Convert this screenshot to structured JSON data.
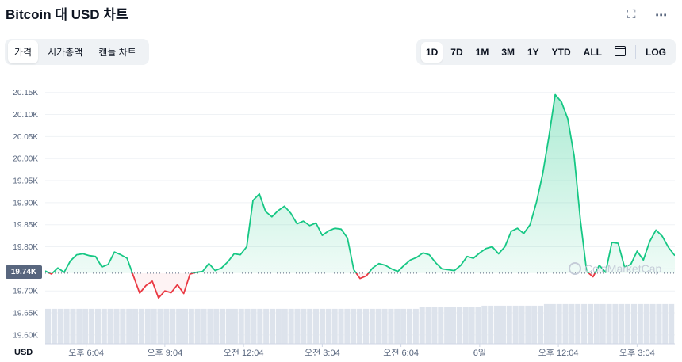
{
  "header": {
    "title": "Bitcoin 대 USD 차트",
    "fullscreen_icon": "expand-icon",
    "more_icon": "more-icon"
  },
  "tabs": [
    {
      "label": "가격",
      "active": true
    },
    {
      "label": "시가총액",
      "active": false
    },
    {
      "label": "캔들 차트",
      "active": false
    }
  ],
  "ranges": {
    "items": [
      "1D",
      "7D",
      "1M",
      "3M",
      "1Y",
      "YTD",
      "ALL"
    ],
    "active": "1D",
    "calendar_icon": "calendar-icon",
    "log_label": "LOG"
  },
  "current_price_label": "19.74K",
  "watermark": "CoinMarketCap",
  "colors": {
    "up": "#16c784",
    "down": "#ea3943",
    "volume": "#dde3ec",
    "grid": "#eff2f5",
    "ref_line": "#58667e"
  },
  "chart_data": {
    "type": "line",
    "unit_label": "USD",
    "reference_value": 19740,
    "ylim": [
      19580,
      20180
    ],
    "y_ticks": [
      19600,
      19650,
      19700,
      19750,
      19800,
      19850,
      19900,
      19950,
      20000,
      20050,
      20100,
      20150
    ],
    "y_tick_labels": [
      "19.60K",
      "19.65K",
      "19.70K",
      "19.75K",
      "19.80K",
      "19.85K",
      "19.90K",
      "19.95K",
      "20.00K",
      "20.05K",
      "20.10K",
      "20.15K"
    ],
    "x_ticks": [
      {
        "label": "오후 6:04",
        "x": 0.065
      },
      {
        "label": "오후 9:04",
        "x": 0.19
      },
      {
        "label": "오전 12:04",
        "x": 0.315
      },
      {
        "label": "오전 3:04",
        "x": 0.44
      },
      {
        "label": "오전 6:04",
        "x": 0.565
      },
      {
        "label": "6일",
        "x": 0.69
      },
      {
        "label": "오후 12:04",
        "x": 0.815
      },
      {
        "label": "오후 3:04",
        "x": 0.94
      }
    ],
    "grid": true,
    "series": [
      {
        "x": [
          0,
          0.01,
          0.02,
          0.03,
          0.04,
          0.05,
          0.06,
          0.07,
          0.08,
          0.09,
          0.1,
          0.11,
          0.12,
          0.13,
          0.14,
          0.15,
          0.16,
          0.17,
          0.18,
          0.19,
          0.2,
          0.21,
          0.22,
          0.23,
          0.24,
          0.25,
          0.26,
          0.27,
          0.28,
          0.29,
          0.3,
          0.31,
          0.32,
          0.33,
          0.34,
          0.35,
          0.36,
          0.37,
          0.38,
          0.39,
          0.4,
          0.41,
          0.42,
          0.43,
          0.44,
          0.45,
          0.46,
          0.47,
          0.48,
          0.49,
          0.5,
          0.51,
          0.52,
          0.53,
          0.54,
          0.55,
          0.56,
          0.57,
          0.58,
          0.59,
          0.6,
          0.61,
          0.62,
          0.63,
          0.64,
          0.65,
          0.66,
          0.67,
          0.68,
          0.69,
          0.7,
          0.71,
          0.72,
          0.73,
          0.74,
          0.75,
          0.76,
          0.77,
          0.78,
          0.79,
          0.8,
          0.81,
          0.82,
          0.83,
          0.84,
          0.85,
          0.86,
          0.87,
          0.88,
          0.89,
          0.9,
          0.91,
          0.92,
          0.93,
          0.94,
          0.95,
          0.96,
          0.97,
          0.98,
          0.99,
          1
        ],
        "values": [
          19745,
          19738,
          19752,
          19742,
          19768,
          19782,
          19784,
          19780,
          19778,
          19754,
          19760,
          19788,
          19782,
          19774,
          19734,
          19695,
          19712,
          19722,
          19684,
          19700,
          19696,
          19714,
          19694,
          19738,
          19742,
          19744,
          19762,
          19746,
          19752,
          19766,
          19784,
          19782,
          19800,
          19905,
          19920,
          19880,
          19868,
          19882,
          19892,
          19876,
          19852,
          19858,
          19848,
          19854,
          19826,
          19836,
          19842,
          19840,
          19820,
          19748,
          19728,
          19734,
          19752,
          19762,
          19758,
          19750,
          19744,
          19758,
          19770,
          19776,
          19786,
          19782,
          19764,
          19750,
          19748,
          19746,
          19758,
          19778,
          19774,
          19786,
          19796,
          19800,
          19784,
          19800,
          19835,
          19842,
          19830,
          19850,
          19900,
          19965,
          20050,
          20145,
          20128,
          20090,
          20006,
          19860,
          19744,
          19732,
          19758,
          19742,
          19810,
          19808,
          19754,
          19760,
          19790,
          19770,
          19812,
          19838,
          19824,
          19798,
          19780
        ]
      }
    ],
    "volume": {
      "note": "",
      "values": [
        0.22,
        0.22,
        0.22,
        0.22,
        0.22,
        0.22,
        0.22,
        0.22,
        0.22,
        0.22,
        0.22,
        0.22,
        0.22,
        0.22,
        0.22,
        0.22,
        0.22,
        0.22,
        0.22,
        0.22,
        0.22,
        0.22,
        0.22,
        0.22,
        0.22,
        0.22,
        0.22,
        0.22,
        0.22,
        0.22,
        0.22,
        0.22,
        0.22,
        0.22,
        0.22,
        0.22,
        0.22,
        0.22,
        0.22,
        0.22,
        0.22,
        0.22,
        0.22,
        0.22,
        0.22,
        0.22,
        0.22,
        0.22,
        0.22,
        0.22,
        0.22,
        0.22,
        0.22,
        0.22,
        0.22,
        0.22,
        0.22,
        0.22,
        0.22,
        0.22,
        0.23,
        0.23,
        0.23,
        0.23,
        0.23,
        0.23,
        0.23,
        0.23,
        0.23,
        0.23,
        0.24,
        0.24,
        0.24,
        0.24,
        0.24,
        0.24,
        0.24,
        0.24,
        0.24,
        0.24,
        0.25,
        0.25,
        0.25,
        0.25,
        0.25,
        0.25,
        0.25,
        0.25,
        0.25,
        0.25,
        0.25,
        0.25,
        0.25,
        0.25,
        0.25,
        0.25,
        0.25,
        0.25,
        0.25,
        0.25,
        0.25
      ]
    }
  }
}
